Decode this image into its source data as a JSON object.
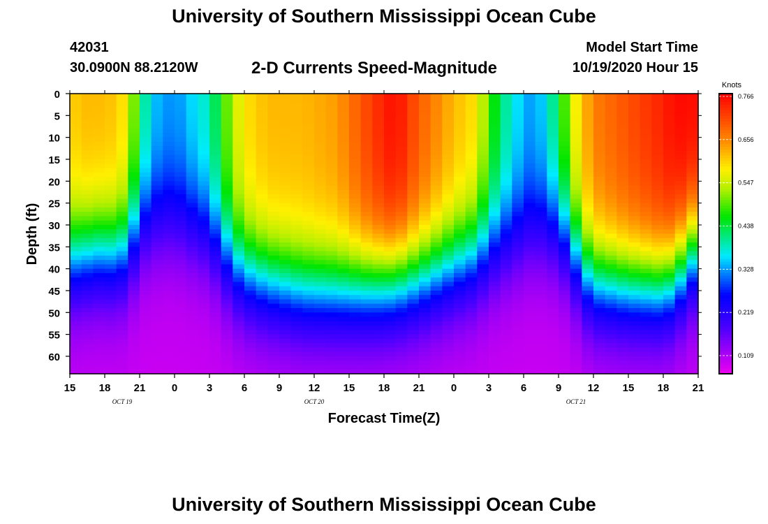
{
  "header": {
    "title": "University of Southern Mississippi Ocean Cube",
    "station_id": "42031",
    "station_coords": "30.0900N 88.2120W",
    "model_start_label": "Model Start Time",
    "model_start_value": "10/19/2020 Hour 15"
  },
  "footer": {
    "title": "University of Southern Mississippi Ocean Cube"
  },
  "chart_data": {
    "type": "heatmap",
    "title": "2-D Currents Speed-Magnitude",
    "xlabel": "Forecast Time(Z)",
    "ylabel": "Depth (ft)",
    "x_ticks": [
      "15",
      "18",
      "21",
      "0",
      "3",
      "6",
      "9",
      "12",
      "15",
      "18",
      "21",
      "0",
      "3",
      "6",
      "9",
      "12",
      "15",
      "18",
      "21"
    ],
    "day_labels": [
      {
        "label": "OCT 19",
        "tick_index": 1.5
      },
      {
        "label": "OCT 20",
        "tick_index": 7
      },
      {
        "label": "OCT 21",
        "tick_index": 14.5
      }
    ],
    "x_hours": [
      0,
      54
    ],
    "y_ticks": [
      0,
      5,
      10,
      15,
      20,
      25,
      30,
      35,
      40,
      45,
      50,
      55,
      60
    ],
    "ylim": [
      0,
      64
    ],
    "colorbar": {
      "label": "Knots",
      "ticks": [
        "0.766",
        "0.656",
        "0.547",
        "0.438",
        "0.328",
        "0.219",
        "0.109"
      ],
      "range": [
        0.08,
        0.766
      ]
    },
    "profile": {
      "hours": [
        0,
        1,
        3,
        4,
        5,
        6,
        7,
        9,
        12,
        14,
        15,
        17,
        20,
        23,
        26,
        28,
        30,
        33,
        35,
        36,
        38,
        40,
        42,
        43,
        44,
        45,
        48,
        51,
        52,
        54
      ],
      "surface": [
        0.6,
        0.62,
        0.62,
        0.61,
        0.58,
        0.45,
        0.36,
        0.33,
        0.4,
        0.54,
        0.59,
        0.62,
        0.62,
        0.64,
        0.72,
        0.76,
        0.69,
        0.62,
        0.59,
        0.49,
        0.38,
        0.33,
        0.44,
        0.55,
        0.61,
        0.66,
        0.7,
        0.74,
        0.76,
        0.76
      ],
      "mid_depth": [
        38,
        37,
        36,
        37,
        35,
        30,
        29,
        29,
        32,
        39,
        41,
        43,
        45,
        45,
        44,
        43,
        42,
        39,
        37,
        35,
        33,
        31,
        31,
        34,
        40,
        43,
        44,
        44,
        42,
        34
      ]
    }
  }
}
